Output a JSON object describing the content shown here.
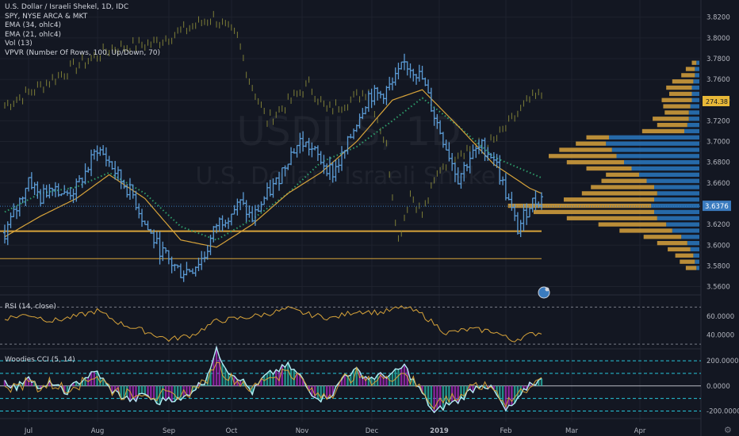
{
  "header": {
    "title": "U.S. Dollar / Israeli Shekel, 1D, IDC",
    "overlays": [
      "SPY, NYSE ARCA & MKT",
      "EMA (34, ohlc4)",
      "EMA (21, ohlc4)",
      "Vol (13)",
      "VPVR (Number Of Rows, 100, Up/Down, 70)"
    ]
  },
  "watermark": {
    "symbol": "USDILS, 1D",
    "name": "U.S. Dollar / Israeli Shekel"
  },
  "rsi_label": "RSI (14, close)",
  "cci_label": "Woodies CCI (5, 14)",
  "colors": {
    "background": "#131722",
    "up_bar": "#5b9bd5",
    "spy": "#8a8a3a",
    "ema34": "#d7a33a",
    "ema21": "#2e9c6a",
    "vp_up": "#2a78c0",
    "vp_down": "#d8a23c",
    "last_price": "#3a7bbf",
    "spy_label": "#e8b838"
  },
  "chart_data": [
    {
      "type": "ohlc",
      "symbol": "USDILS",
      "ylim": [
        3.552,
        3.832
      ],
      "yticks": [
        "3.8200",
        "3.8000",
        "3.7800",
        "3.7600",
        "3.7400",
        "3.7200",
        "3.7000",
        "3.6800",
        "3.6600",
        "3.6400",
        "3.6200",
        "3.6000",
        "3.5800",
        "3.5600"
      ],
      "ytick_values": [
        3.82,
        3.8,
        3.78,
        3.76,
        3.74,
        3.72,
        3.7,
        3.68,
        3.66,
        3.64,
        3.62,
        3.6,
        3.58,
        3.56
      ],
      "xticks": [
        "Jul",
        "Aug",
        "Sep",
        "Oct",
        "Nov",
        "Dec",
        "2019",
        "Feb",
        "Mar",
        "Apr"
      ],
      "last_price": "3.6376",
      "spy_last": "274.38",
      "keypoints": [
        [
          0,
          3.612
        ],
        [
          4,
          3.635
        ],
        [
          8,
          3.665
        ],
        [
          12,
          3.645
        ],
        [
          16,
          3.66
        ],
        [
          20,
          3.648
        ],
        [
          24,
          3.655
        ],
        [
          28,
          3.675
        ],
        [
          31,
          3.694
        ],
        [
          35,
          3.68
        ],
        [
          39,
          3.662
        ],
        [
          43,
          3.648
        ],
        [
          47,
          3.62
        ],
        [
          51,
          3.6
        ],
        [
          55,
          3.585
        ],
        [
          59,
          3.574
        ],
        [
          63,
          3.578
        ],
        [
          67,
          3.59
        ],
        [
          71,
          3.62
        ],
        [
          75,
          3.63
        ],
        [
          79,
          3.64
        ],
        [
          83,
          3.625
        ],
        [
          87,
          3.645
        ],
        [
          91,
          3.66
        ],
        [
          95,
          3.685
        ],
        [
          99,
          3.7
        ],
        [
          102,
          3.695
        ],
        [
          106,
          3.682
        ],
        [
          110,
          3.67
        ],
        [
          114,
          3.69
        ],
        [
          118,
          3.72
        ],
        [
          122,
          3.745
        ],
        [
          126,
          3.745
        ],
        [
          130,
          3.755
        ],
        [
          134,
          3.775
        ],
        [
          137,
          3.77
        ],
        [
          140,
          3.76
        ],
        [
          144,
          3.725
        ],
        [
          148,
          3.695
        ],
        [
          152,
          3.665
        ],
        [
          156,
          3.685
        ],
        [
          160,
          3.695
        ],
        [
          164,
          3.685
        ],
        [
          168,
          3.65
        ],
        [
          172,
          3.615
        ],
        [
          176,
          3.64
        ],
        [
          180,
          3.645
        ]
      ],
      "ema21_keypoints": [
        [
          0,
          3.632
        ],
        [
          12,
          3.65
        ],
        [
          24,
          3.656
        ],
        [
          35,
          3.67
        ],
        [
          47,
          3.65
        ],
        [
          59,
          3.618
        ],
        [
          71,
          3.605
        ],
        [
          83,
          3.625
        ],
        [
          95,
          3.65
        ],
        [
          106,
          3.68
        ],
        [
          118,
          3.695
        ],
        [
          130,
          3.72
        ],
        [
          140,
          3.742
        ],
        [
          152,
          3.715
        ],
        [
          164,
          3.685
        ],
        [
          176,
          3.67
        ],
        [
          180,
          3.665
        ]
      ],
      "ema34_keypoints": [
        [
          0,
          3.608
        ],
        [
          12,
          3.628
        ],
        [
          24,
          3.645
        ],
        [
          35,
          3.668
        ],
        [
          47,
          3.645
        ],
        [
          59,
          3.605
        ],
        [
          71,
          3.598
        ],
        [
          83,
          3.62
        ],
        [
          95,
          3.65
        ],
        [
          106,
          3.67
        ],
        [
          118,
          3.7
        ],
        [
          130,
          3.74
        ],
        [
          140,
          3.75
        ],
        [
          152,
          3.715
        ],
        [
          164,
          3.678
        ],
        [
          176,
          3.655
        ],
        [
          180,
          3.65
        ]
      ],
      "spy_keypoints": [
        [
          0,
          3.735
        ],
        [
          10,
          3.75
        ],
        [
          22,
          3.77
        ],
        [
          36,
          3.79
        ],
        [
          50,
          3.795
        ],
        [
          62,
          3.81
        ],
        [
          70,
          3.82
        ],
        [
          78,
          3.8
        ],
        [
          82,
          3.76
        ],
        [
          88,
          3.72
        ],
        [
          96,
          3.74
        ],
        [
          102,
          3.755
        ],
        [
          108,
          3.73
        ],
        [
          116,
          3.74
        ],
        [
          122,
          3.75
        ],
        [
          128,
          3.695
        ],
        [
          132,
          3.605
        ],
        [
          136,
          3.65
        ],
        [
          140,
          3.63
        ],
        [
          146,
          3.675
        ],
        [
          152,
          3.69
        ],
        [
          158,
          3.695
        ],
        [
          164,
          3.7
        ],
        [
          170,
          3.72
        ],
        [
          176,
          3.74
        ],
        [
          180,
          3.745
        ]
      ],
      "horizontal_lines": [
        3.6135,
        3.587
      ],
      "volume_profile": [
        [
          3.776,
          0.02,
          0.03
        ],
        [
          3.77,
          0.03,
          0.06
        ],
        [
          3.764,
          0.03,
          0.09
        ],
        [
          3.758,
          0.04,
          0.14
        ],
        [
          3.752,
          0.05,
          0.17
        ],
        [
          3.746,
          0.05,
          0.15
        ],
        [
          3.74,
          0.05,
          0.2
        ],
        [
          3.734,
          0.06,
          0.18
        ],
        [
          3.728,
          0.07,
          0.16
        ],
        [
          3.722,
          0.07,
          0.24
        ],
        [
          3.716,
          0.08,
          0.2
        ],
        [
          3.71,
          0.1,
          0.28
        ],
        [
          3.704,
          0.6,
          0.15
        ],
        [
          3.698,
          0.62,
          0.2
        ],
        [
          3.692,
          0.58,
          0.35
        ],
        [
          3.686,
          0.55,
          0.45
        ],
        [
          3.68,
          0.5,
          0.38
        ],
        [
          3.674,
          0.45,
          0.3
        ],
        [
          3.668,
          0.4,
          0.22
        ],
        [
          3.662,
          0.35,
          0.3
        ],
        [
          3.656,
          0.3,
          0.42
        ],
        [
          3.65,
          0.28,
          0.5
        ],
        [
          3.644,
          0.3,
          0.6
        ],
        [
          3.638,
          0.32,
          0.95
        ],
        [
          3.632,
          0.3,
          0.8
        ],
        [
          3.626,
          0.28,
          0.6
        ],
        [
          3.62,
          0.22,
          0.45
        ],
        [
          3.614,
          0.18,
          0.35
        ],
        [
          3.608,
          0.12,
          0.25
        ],
        [
          3.602,
          0.08,
          0.2
        ],
        [
          3.596,
          0.06,
          0.15
        ],
        [
          3.59,
          0.04,
          0.12
        ],
        [
          3.584,
          0.03,
          0.1
        ],
        [
          3.578,
          0.02,
          0.07
        ]
      ]
    },
    {
      "type": "line",
      "name": "RSI (14, close)",
      "ylim": [
        25,
        78
      ],
      "yticks": [
        "60.0000",
        "40.0000"
      ],
      "ytick_values": [
        60,
        40
      ],
      "bands": [
        70,
        30
      ],
      "keypoints": [
        [
          0,
          58
        ],
        [
          8,
          62
        ],
        [
          16,
          55
        ],
        [
          24,
          60
        ],
        [
          31,
          66
        ],
        [
          39,
          52
        ],
        [
          47,
          44
        ],
        [
          55,
          35
        ],
        [
          63,
          40
        ],
        [
          71,
          55
        ],
        [
          79,
          58
        ],
        [
          87,
          62
        ],
        [
          95,
          68
        ],
        [
          102,
          62
        ],
        [
          110,
          58
        ],
        [
          118,
          66
        ],
        [
          126,
          64
        ],
        [
          134,
          70
        ],
        [
          140,
          62
        ],
        [
          148,
          42
        ],
        [
          156,
          46
        ],
        [
          164,
          44
        ],
        [
          170,
          34
        ],
        [
          176,
          40
        ],
        [
          180,
          43
        ]
      ]
    },
    {
      "type": "bar",
      "name": "Woodies CCI (5, 14)",
      "ylim": [
        -260,
        270
      ],
      "yticks": [
        "200.0000",
        "0.0000",
        "-200.0000"
      ],
      "ytick_values": [
        200,
        0,
        -200
      ],
      "bands": [
        200,
        100,
        -100,
        -200
      ],
      "keypoints": [
        [
          0,
          40
        ],
        [
          4,
          -20
        ],
        [
          8,
          90
        ],
        [
          12,
          -40
        ],
        [
          16,
          30
        ],
        [
          20,
          -60
        ],
        [
          24,
          20
        ],
        [
          28,
          80
        ],
        [
          31,
          110
        ],
        [
          35,
          -20
        ],
        [
          39,
          -80
        ],
        [
          43,
          -120
        ],
        [
          47,
          -60
        ],
        [
          51,
          -140
        ],
        [
          55,
          -90
        ],
        [
          59,
          -120
        ],
        [
          63,
          -30
        ],
        [
          67,
          40
        ],
        [
          71,
          280
        ],
        [
          75,
          120
        ],
        [
          79,
          60
        ],
        [
          83,
          -50
        ],
        [
          87,
          70
        ],
        [
          91,
          120
        ],
        [
          95,
          160
        ],
        [
          99,
          80
        ],
        [
          102,
          -40
        ],
        [
          106,
          -100
        ],
        [
          110,
          -60
        ],
        [
          114,
          90
        ],
        [
          118,
          120
        ],
        [
          122,
          60
        ],
        [
          126,
          80
        ],
        [
          130,
          90
        ],
        [
          134,
          160
        ],
        [
          137,
          40
        ],
        [
          140,
          -60
        ],
        [
          144,
          -220
        ],
        [
          148,
          -150
        ],
        [
          152,
          -120
        ],
        [
          156,
          -40
        ],
        [
          160,
          20
        ],
        [
          164,
          -40
        ],
        [
          168,
          -200
        ],
        [
          172,
          -120
        ],
        [
          176,
          20
        ],
        [
          180,
          40
        ]
      ]
    }
  ]
}
